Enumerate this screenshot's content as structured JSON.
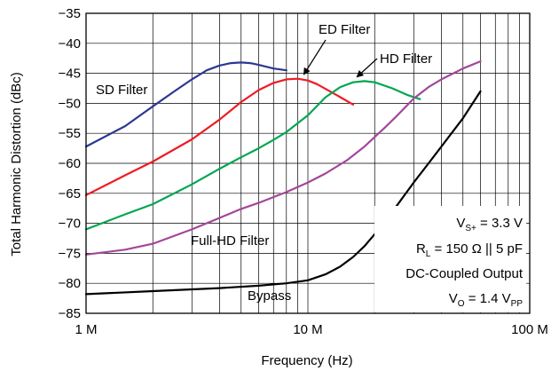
{
  "chart_data": {
    "type": "line",
    "xlabel": "Frequency (Hz)",
    "ylabel": "Total Harmonic Distortion (dBc)",
    "x_scale": "log",
    "xlim": [
      1000000,
      100000000
    ],
    "ylim": [
      -85,
      -35
    ],
    "x_ticks": [
      {
        "value": 1000000,
        "label": "1 M"
      },
      {
        "value": 10000000,
        "label": "10 M"
      },
      {
        "value": 100000000,
        "label": "100 M"
      }
    ],
    "y_ticks": [
      {
        "value": -35,
        "label": "−35"
      },
      {
        "value": -40,
        "label": "−40"
      },
      {
        "value": -45,
        "label": "−45"
      },
      {
        "value": -50,
        "label": "−50"
      },
      {
        "value": -55,
        "label": "−55"
      },
      {
        "value": -60,
        "label": "−60"
      },
      {
        "value": -65,
        "label": "−65"
      },
      {
        "value": -70,
        "label": "−70"
      },
      {
        "value": -75,
        "label": "−75"
      },
      {
        "value": -80,
        "label": "−80"
      },
      {
        "value": -85,
        "label": "−85"
      }
    ],
    "grid": true,
    "series": [
      {
        "name": "SD Filter",
        "color": "#2b3990",
        "points": [
          [
            1000000,
            -57.2
          ],
          [
            1500000,
            -53.8
          ],
          [
            2000000,
            -50.5
          ],
          [
            2500000,
            -48
          ],
          [
            3000000,
            -46
          ],
          [
            3500000,
            -44.5
          ],
          [
            4000000,
            -43.7
          ],
          [
            4500000,
            -43.3
          ],
          [
            5000000,
            -43.2
          ],
          [
            5500000,
            -43.3
          ],
          [
            6000000,
            -43.6
          ],
          [
            7000000,
            -44.2
          ],
          [
            8000000,
            -44.5
          ]
        ]
      },
      {
        "name": "ED Filter",
        "color": "#ed1c24",
        "points": [
          [
            1000000,
            -65.3
          ],
          [
            1500000,
            -62
          ],
          [
            2000000,
            -59.7
          ],
          [
            3000000,
            -56
          ],
          [
            4000000,
            -52.7
          ],
          [
            5000000,
            -49.8
          ],
          [
            6000000,
            -47.8
          ],
          [
            7000000,
            -46.6
          ],
          [
            8000000,
            -46
          ],
          [
            9000000,
            -45.9
          ],
          [
            10000000,
            -46.2
          ],
          [
            11000000,
            -46.8
          ],
          [
            13000000,
            -48.3
          ],
          [
            16000000,
            -50.2
          ]
        ]
      },
      {
        "name": "HD Filter",
        "color": "#00a651",
        "points": [
          [
            1000000,
            -71
          ],
          [
            1500000,
            -68.5
          ],
          [
            2000000,
            -66.8
          ],
          [
            3000000,
            -63.5
          ],
          [
            4000000,
            -60.9
          ],
          [
            5000000,
            -59
          ],
          [
            6000000,
            -57.5
          ],
          [
            7000000,
            -56.1
          ],
          [
            8000000,
            -54.8
          ],
          [
            10000000,
            -52
          ],
          [
            12000000,
            -49
          ],
          [
            14000000,
            -47.3
          ],
          [
            16000000,
            -46.5
          ],
          [
            18000000,
            -46.3
          ],
          [
            20000000,
            -46.5
          ],
          [
            24000000,
            -47.5
          ],
          [
            28000000,
            -48.6
          ],
          [
            32000000,
            -49.3
          ]
        ]
      },
      {
        "name": "Full-HD Filter",
        "color": "#a3479a",
        "points": [
          [
            1000000,
            -75.2
          ],
          [
            1500000,
            -74.4
          ],
          [
            2000000,
            -73.4
          ],
          [
            3000000,
            -71
          ],
          [
            4000000,
            -69.1
          ],
          [
            5000000,
            -67.6
          ],
          [
            6000000,
            -66.6
          ],
          [
            8000000,
            -64.8
          ],
          [
            10000000,
            -63.2
          ],
          [
            12000000,
            -61.7
          ],
          [
            15000000,
            -59.5
          ],
          [
            18000000,
            -57.2
          ],
          [
            22000000,
            -54.2
          ],
          [
            25000000,
            -52.2
          ],
          [
            30000000,
            -49.2
          ],
          [
            35000000,
            -47.3
          ],
          [
            40000000,
            -46
          ],
          [
            50000000,
            -44.2
          ],
          [
            60000000,
            -43
          ]
        ]
      },
      {
        "name": "Bypass",
        "color": "#000000",
        "points": [
          [
            1000000,
            -81.8
          ],
          [
            2000000,
            -81.3
          ],
          [
            4000000,
            -80.8
          ],
          [
            6000000,
            -80.4
          ],
          [
            8000000,
            -80
          ],
          [
            10000000,
            -79.5
          ],
          [
            12000000,
            -78.5
          ],
          [
            14000000,
            -77.2
          ],
          [
            16000000,
            -75.6
          ],
          [
            18000000,
            -73.8
          ],
          [
            20000000,
            -71.8
          ],
          [
            25000000,
            -67.2
          ],
          [
            30000000,
            -63.2
          ],
          [
            35000000,
            -60
          ],
          [
            40000000,
            -57.2
          ],
          [
            50000000,
            -52.5
          ],
          [
            60000000,
            -48
          ]
        ]
      }
    ],
    "annotations": {
      "sd_label": "SD Filter",
      "ed_label": "ED Filter",
      "hd_label": "HD Filter",
      "fullhd_label": "Full-HD Filter",
      "bypass_label": "Bypass"
    },
    "conditions": {
      "vs_main": "V",
      "vs_sub": "S+",
      "vs_value": " = 3.3 V",
      "rl_main": "R",
      "rl_sub": "L",
      "rl_value": " = 150 Ω || 5 pF",
      "coupling": "DC-Coupled Output",
      "vo_main": "V",
      "vo_sub": "O",
      "vo_value": " = 1.4 V",
      "vo_unit_sub": "PP"
    }
  }
}
